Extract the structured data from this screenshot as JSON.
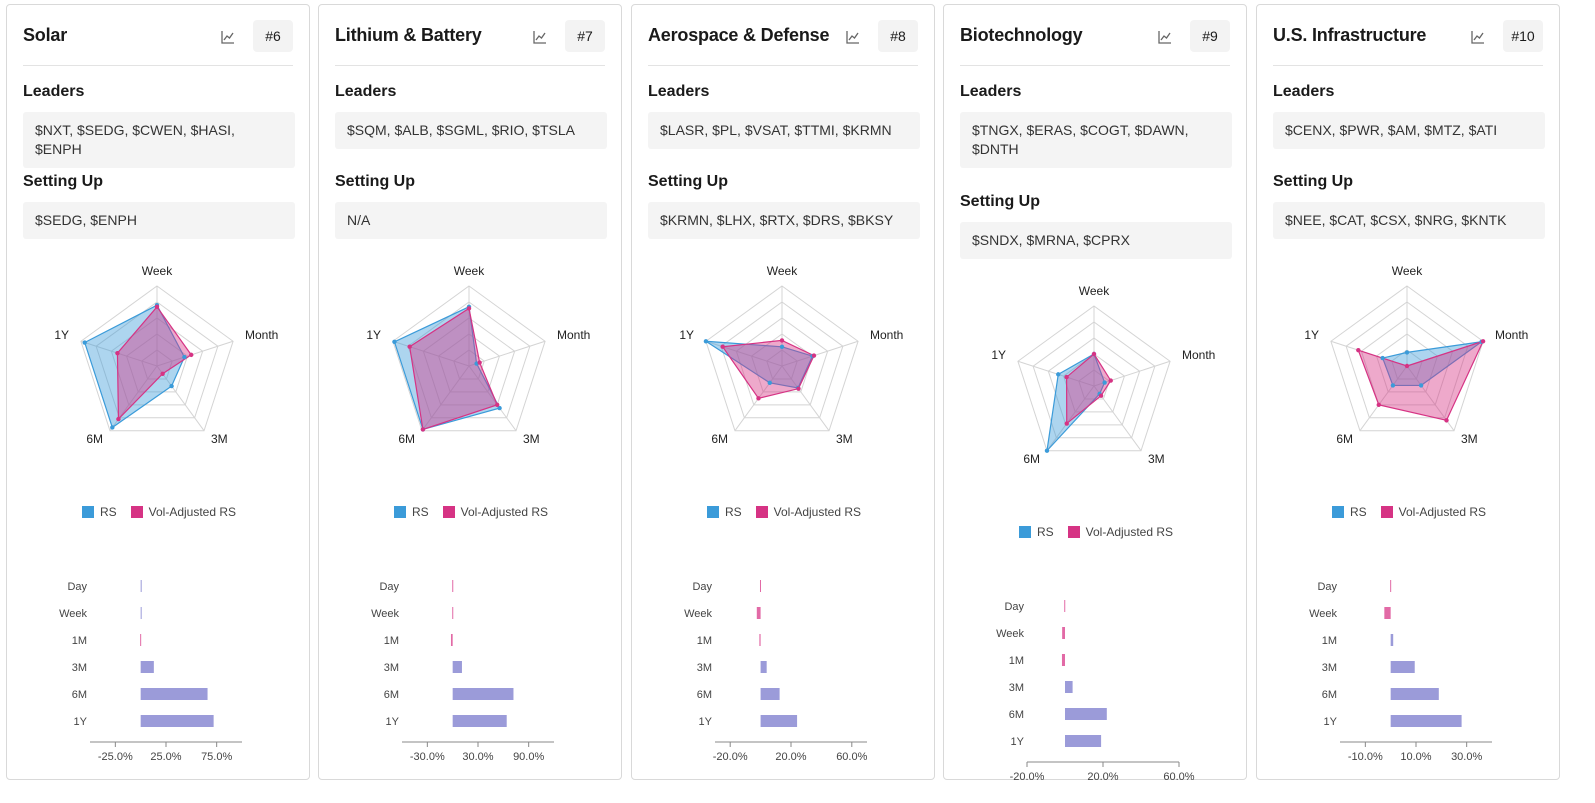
{
  "legend": {
    "rs": "RS",
    "vol": "Vol-Adjusted RS"
  },
  "labels": {
    "leaders": "Leaders",
    "setting_up": "Setting Up"
  },
  "colors": {
    "rs": "#3b9bd9",
    "vol": "#d63384",
    "bar": "#9b9bd9",
    "bar_neg": "#e26aa6"
  },
  "radar_axes": [
    "Week",
    "Month",
    "3M",
    "6M",
    "1Y"
  ],
  "bar_labels": [
    "Day",
    "Week",
    "1M",
    "3M",
    "6M",
    "1Y"
  ],
  "cards": [
    {
      "title": "Solar",
      "rank": "#6",
      "leaders": "$NXT, $SEDG, $CWEN, $HASI, $ENPH",
      "setting_up": "$SEDG, $ENPH",
      "chart_data": {
        "radar": {
          "type": "radar",
          "axes": [
            "Week",
            "Month",
            "3M",
            "6M",
            "1Y"
          ],
          "series": [
            {
              "name": "RS",
              "values": [
                0.76,
                0.36,
                0.31,
                0.95,
                0.95
              ]
            },
            {
              "name": "Vol-Adjusted RS",
              "values": [
                0.74,
                0.45,
                0.12,
                0.82,
                0.52
              ]
            }
          ]
        },
        "bars": {
          "type": "bar",
          "categories": [
            "Day",
            "Week",
            "1M",
            "3M",
            "6M",
            "1Y"
          ],
          "values": [
            1,
            0.6,
            -0.5,
            13,
            66,
            72
          ],
          "xticks": [
            -25,
            25,
            75
          ],
          "xlim": [
            -50,
            100
          ],
          "tick_labels": [
            "-25.0%",
            "25.0%",
            "75.0%"
          ]
        }
      }
    },
    {
      "title": "Lithium & Battery",
      "rank": "#7",
      "leaders": "$SQM, $ALB, $SGML, $RIO, $TSLA",
      "setting_up": "N/A",
      "chart_data": {
        "radar": {
          "type": "radar",
          "axes": [
            "Week",
            "Month",
            "3M",
            "6M",
            "1Y"
          ],
          "series": [
            {
              "name": "RS",
              "values": [
                0.74,
                0.1,
                0.65,
                0.98,
                0.98
              ]
            },
            {
              "name": "Vol-Adjusted RS",
              "values": [
                0.72,
                0.14,
                0.6,
                0.98,
                0.78
              ]
            }
          ]
        },
        "bars": {
          "type": "bar",
          "categories": [
            "Day",
            "Week",
            "1M",
            "3M",
            "6M",
            "1Y"
          ],
          "values": [
            -0.5,
            -0.5,
            -2,
            11,
            72,
            64
          ],
          "xticks": [
            -30,
            30,
            90
          ],
          "xlim": [
            -60,
            120
          ],
          "tick_labels": [
            "-30.0%",
            "30.0%",
            "90.0%"
          ]
        }
      }
    },
    {
      "title": "Aerospace & Defense",
      "rank": "#8",
      "leaders": "$LASR, $PL, $VSAT, $TTMI, $KRMN",
      "setting_up": "$KRMN, $LHX, $RTX, $DRS, $BKSY",
      "chart_data": {
        "radar": {
          "type": "radar",
          "axes": [
            "Week",
            "Month",
            "3M",
            "6M",
            "1Y"
          ],
          "series": [
            {
              "name": "RS",
              "values": [
                0.24,
                0.4,
                0.34,
                0.26,
                1.0
              ]
            },
            {
              "name": "Vol-Adjusted RS",
              "values": [
                0.32,
                0.42,
                0.35,
                0.5,
                0.78
              ]
            }
          ]
        },
        "bars": {
          "type": "bar",
          "categories": [
            "Day",
            "Week",
            "1M",
            "3M",
            "6M",
            "1Y"
          ],
          "values": [
            -0.4,
            -2.5,
            -0.8,
            4,
            12.5,
            24
          ],
          "xticks": [
            -20,
            20,
            60
          ],
          "xlim": [
            -30,
            70
          ],
          "tick_labels": [
            "-20.0%",
            "20.0%",
            "60.0%"
          ]
        }
      }
    },
    {
      "title": "Biotechnology",
      "rank": "#9",
      "leaders": "$TNGX, $ERAS, $COGT, $DAWN, $DNTH",
      "setting_up": "$SNDX, $MRNA, $CPRX",
      "chart_data": {
        "radar": {
          "type": "radar",
          "axes": [
            "Week",
            "Month",
            "3M",
            "6M",
            "1Y"
          ],
          "series": [
            {
              "name": "RS",
              "values": [
                0.4,
                0.14,
                0.12,
                1.0,
                0.47
              ]
            },
            {
              "name": "Vol-Adjusted RS",
              "values": [
                0.4,
                0.22,
                0.15,
                0.58,
                0.36
              ]
            }
          ]
        },
        "bars": {
          "type": "bar",
          "categories": [
            "Day",
            "Week",
            "1M",
            "3M",
            "6M",
            "1Y"
          ],
          "values": [
            -0.4,
            -1.5,
            -1.6,
            4,
            22,
            19
          ],
          "xticks": [
            -20,
            20,
            60
          ],
          "xlim": [
            -20,
            60
          ],
          "tick_labels": [
            "-20.0%",
            "20.0%",
            "60.0%"
          ]
        }
      }
    },
    {
      "title": "U.S. Infrastructure",
      "rank": "#10",
      "leaders": "$CENX, $PWR, $AM, $MTZ, $ATI",
      "setting_up": "$NEE, $CAT, $CSX, $NRG, $KNTK",
      "chart_data": {
        "radar": {
          "type": "radar",
          "axes": [
            "Week",
            "Month",
            "3M",
            "6M",
            "1Y"
          ],
          "series": [
            {
              "name": "RS",
              "values": [
                0.17,
                0.98,
                0.3,
                0.3,
                0.32
              ]
            },
            {
              "name": "Vol-Adjusted RS",
              "values": [
                0.0,
                1.0,
                0.84,
                0.6,
                0.64
              ]
            }
          ]
        },
        "bars": {
          "type": "bar",
          "categories": [
            "Day",
            "Week",
            "1M",
            "3M",
            "6M",
            "1Y"
          ],
          "values": [
            -0.2,
            -2.5,
            1,
            9.5,
            19,
            28
          ],
          "xticks": [
            -10,
            10,
            30
          ],
          "xlim": [
            -20,
            40
          ],
          "tick_labels": [
            "-10.0%",
            "10.0%",
            "30.0%"
          ]
        }
      }
    }
  ]
}
